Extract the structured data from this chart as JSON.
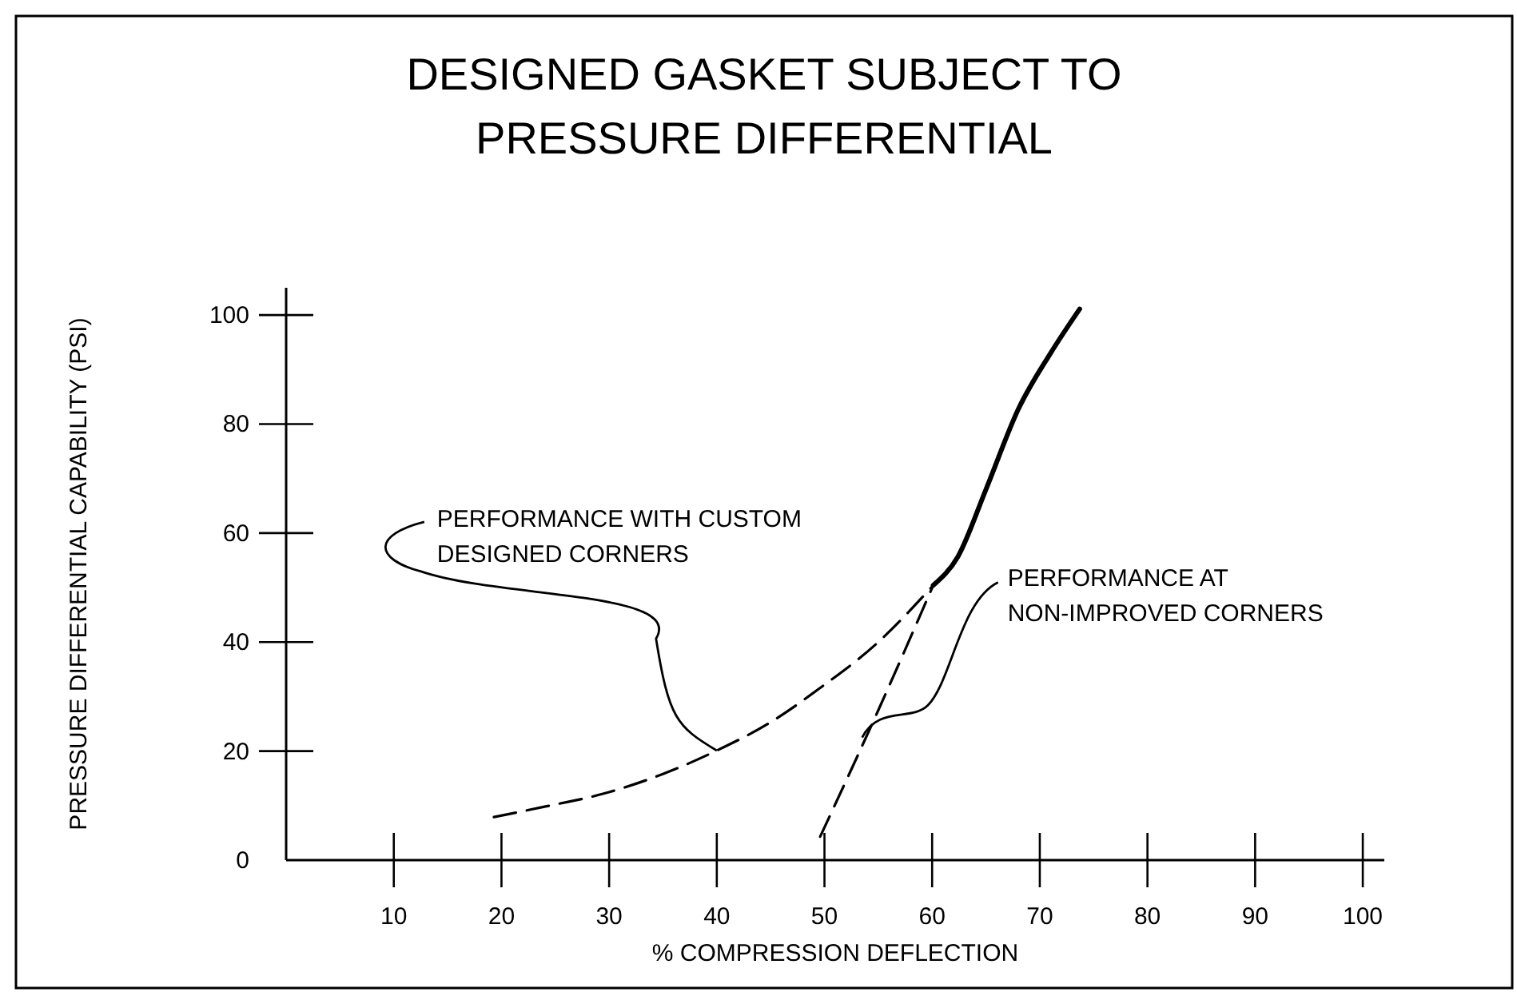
{
  "chart_data": {
    "type": "line",
    "title": "DESIGNED GASKET SUBJECT TO\nPRESSURE DIFFERENTIAL",
    "xlabel": "% COMPRESSION DEFLECTION",
    "ylabel": "PRESSURE DIFFERENTIAL CAPABILITY (PSI)",
    "xlim": [
      0,
      102
    ],
    "ylim": [
      0,
      105
    ],
    "xticks": [
      10,
      20,
      30,
      40,
      50,
      60,
      70,
      80,
      90,
      100
    ],
    "yticks": [
      0,
      20,
      40,
      60,
      80,
      100
    ],
    "grid": false,
    "series": [
      {
        "color": "#000000",
        "line_style": "dashed",
        "x": [
          19.3,
          24,
          29.5,
          35,
          40,
          45,
          49.4,
          55,
          60.1
        ],
        "values": [
          7.9,
          9.8,
          12.2,
          15.8,
          20.1,
          25.3,
          31.3,
          40,
          50.4
        ]
      },
      {
        "color": "#000000",
        "line_style": "dashed",
        "x": [
          49.6,
          55,
          60.1
        ],
        "values": [
          4.3,
          27.5,
          50.4
        ]
      },
      {
        "color": "#000000",
        "line_style": "solid",
        "x": [
          60.1,
          62.4,
          65,
          68,
          71,
          73.7
        ],
        "values": [
          50.4,
          55.7,
          68,
          82.7,
          93,
          101.1
        ]
      }
    ],
    "annotations": [
      {
        "text": "PERFORMANCE WITH CUSTOM\nDESIGNED CORNERS",
        "x": 40,
        "y": 20.1
      },
      {
        "text": "PERFORMANCE AT\nNON-IMPROVED CORNERS",
        "x": 53.5,
        "y": 22.5
      }
    ]
  }
}
